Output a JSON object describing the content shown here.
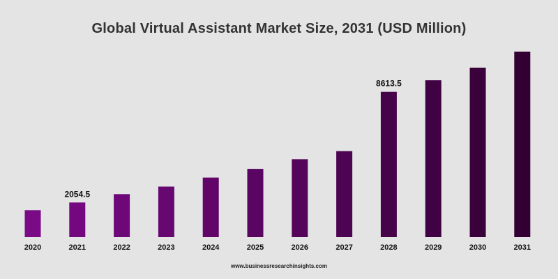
{
  "chart_data": {
    "type": "bar",
    "title": "Global Virtual Assistant Market Size, 2031 (USD Million)",
    "categories": [
      "2020",
      "2021",
      "2022",
      "2023",
      "2024",
      "2025",
      "2026",
      "2027",
      "2028",
      "2029",
      "2030",
      "2031"
    ],
    "values": [
      1600,
      2054.5,
      2550,
      3000,
      3530,
      4050,
      4620,
      5100,
      8613.5,
      9300,
      10050,
      11000
    ],
    "data_labels": [
      {
        "category": "2021",
        "text": "2054.5"
      },
      {
        "category": "2028",
        "text": "8613.5"
      }
    ],
    "xlabel": "",
    "ylabel": "",
    "legend": "none",
    "grid": false,
    "colors": {
      "bar_start": "#7b0a87",
      "bar_end": "#330033",
      "background": "#e4e4e4"
    }
  },
  "footer": {
    "source": "www.businessresearchinsights.com"
  }
}
